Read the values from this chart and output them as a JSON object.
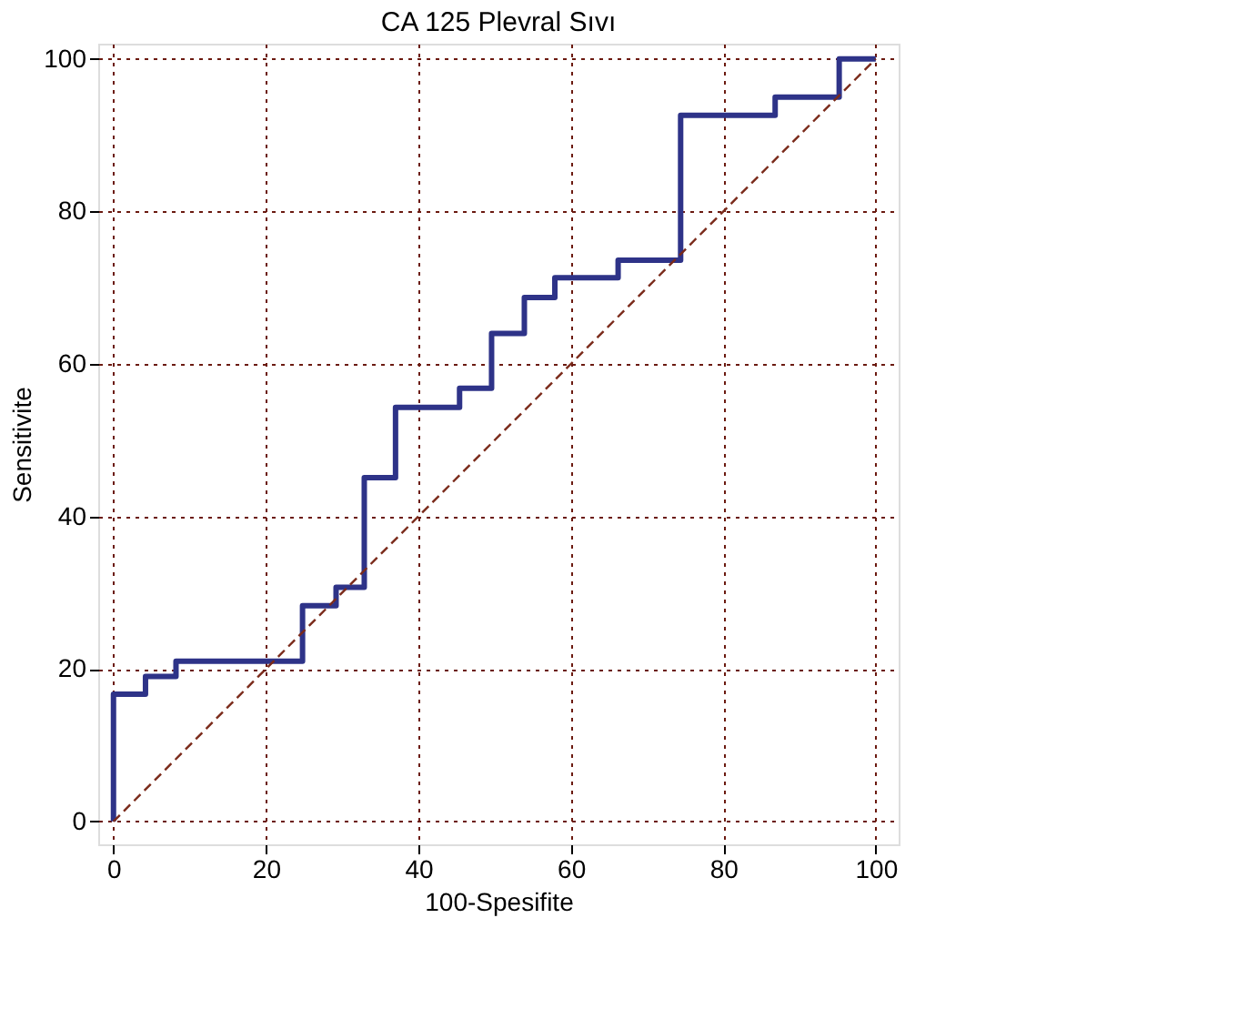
{
  "chart_data": {
    "type": "step",
    "title": "CA 125 Plevral Sıvı",
    "xlabel": "100-Spesifite",
    "ylabel": "Sensitivite",
    "series": [
      {
        "color": "#2e3388",
        "line_style": "solid",
        "x": [
          0,
          0,
          4.2,
          8.2,
          24.8,
          29.2,
          32.9,
          37,
          45.4,
          49.6,
          53.9,
          57.9,
          66.2,
          74.4,
          86.8,
          95.2,
          100
        ],
        "values": [
          0,
          16.7,
          19,
          21,
          28.3,
          30.7,
          45.1,
          54.3,
          56.8,
          64,
          68.7,
          71.3,
          73.6,
          92.6,
          95,
          100,
          100
        ]
      },
      {
        "type": "line",
        "color": "#7a2a1a",
        "line_style": "dashed",
        "x": [
          0,
          100
        ],
        "values": [
          0,
          100
        ]
      }
    ],
    "xlim": [
      -2,
      103
    ],
    "ylim": [
      -3,
      102
    ],
    "xticks": [
      0,
      20,
      40,
      60,
      80,
      100
    ],
    "yticks": [
      0,
      20,
      40,
      60,
      80,
      100
    ],
    "grid": true,
    "marker": "none"
  }
}
